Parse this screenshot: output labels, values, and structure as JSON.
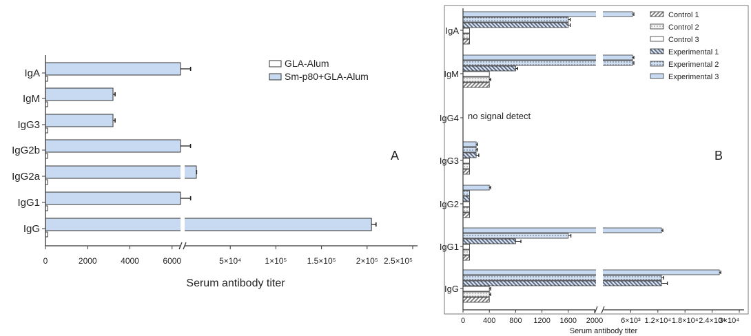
{
  "chart_data": [
    {
      "type": "bar",
      "orientation": "horizontal",
      "panel_label": "A",
      "xlabel": "Serum antibody titer",
      "categories": [
        "IgA",
        "IgM",
        "IgG3",
        "IgG2b",
        "IgG2a",
        "IgG1",
        "IgG"
      ],
      "x_ticks_left": [
        "0",
        "2000",
        "4000",
        "6000"
      ],
      "x_ticks_right": [
        "5×10⁴",
        "1×10⁵",
        "1.5×10⁵",
        "2×10⁵",
        "2.5×10⁵"
      ],
      "axis_break": true,
      "legend": {
        "position": "top-right"
      },
      "series": [
        {
          "name": "GLA-Alum",
          "color": "#ffffff",
          "values": [
            100,
            100,
            100,
            100,
            100,
            100,
            100
          ],
          "errors": [
            0,
            0,
            0,
            0,
            0,
            0,
            0
          ]
        },
        {
          "name": "Sm-p80+GLA-Alum",
          "color": "#c8daf2",
          "values": [
            6400,
            3200,
            3200,
            6400,
            12800,
            6400,
            204800
          ],
          "errors": [
            150,
            100,
            100,
            60,
            300,
            150,
            5000
          ]
        }
      ]
    },
    {
      "type": "bar",
      "orientation": "horizontal",
      "panel_label": "B",
      "xlabel": "Serum antibody titer",
      "categories": [
        "IgA",
        "IgM",
        "IgG4",
        "IgG3",
        "IgG2",
        "IgG1",
        "IgG"
      ],
      "x_ticks_left": [
        "0",
        "400",
        "800",
        "1200",
        "1600",
        "2000"
      ],
      "x_ticks_right": [
        "6×10³",
        "1.2×10⁴",
        "1.8×10⁴",
        "2.4×10⁴",
        "3×10⁴"
      ],
      "axis_break": true,
      "annotation": "no signal detect",
      "legend": {
        "position": "top-right"
      },
      "series": [
        {
          "name": "Control 1",
          "color": "#a9a9a9",
          "values": [
            100,
            400,
            null,
            100,
            100,
            100,
            400
          ],
          "errors": [
            0,
            0,
            null,
            0,
            0,
            0,
            0
          ]
        },
        {
          "name": "Control 2",
          "color": "#dcdcdc",
          "values": [
            100,
            400,
            null,
            100,
            100,
            100,
            400
          ],
          "errors": [
            0,
            20,
            null,
            0,
            0,
            0,
            20
          ]
        },
        {
          "name": "Control 3",
          "color": "#ffffff",
          "values": [
            100,
            400,
            null,
            100,
            100,
            100,
            400
          ],
          "errors": [
            0,
            0,
            null,
            0,
            0,
            0,
            20
          ]
        },
        {
          "name": "Experimental 1",
          "color": "#9aa8bd",
          "values": [
            1600,
            800,
            null,
            200,
            100,
            800,
            12800
          ],
          "errors": [
            30,
            30,
            null,
            40,
            0,
            80,
            1300
          ]
        },
        {
          "name": "Experimental 2",
          "color": "#b8c6da",
          "values": [
            1600,
            6400,
            null,
            200,
            100,
            1600,
            12800
          ],
          "errors": [
            30,
            300,
            null,
            20,
            0,
            40,
            500
          ]
        },
        {
          "name": "Experimental 3",
          "color": "#c8daf2",
          "values": [
            6400,
            6400,
            null,
            200,
            400,
            12800,
            25600
          ],
          "errors": [
            300,
            300,
            null,
            20,
            20,
            300,
            300
          ]
        }
      ]
    }
  ]
}
